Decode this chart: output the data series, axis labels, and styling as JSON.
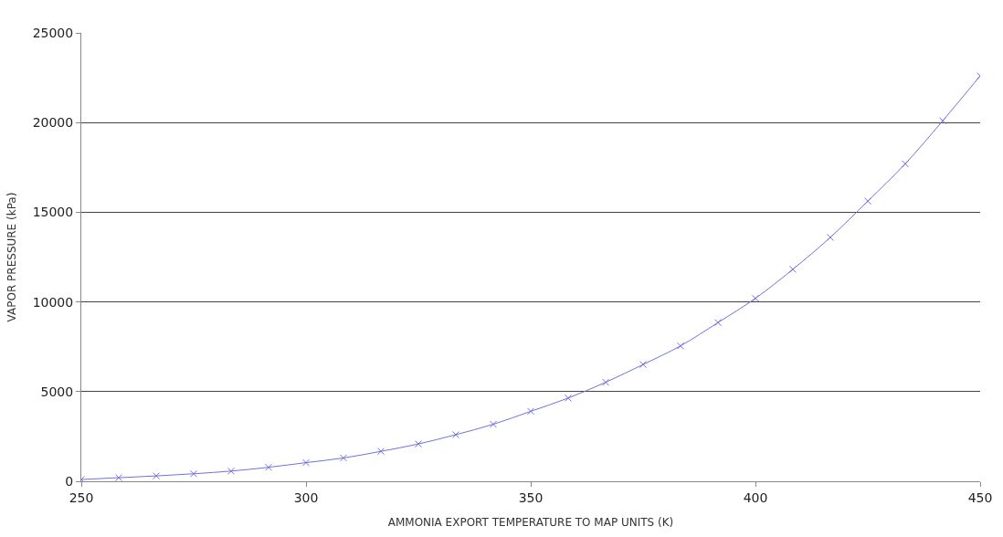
{
  "chart_data": {
    "type": "line",
    "xlabel": "AMMONIA EXPORT TEMPERATURE TO MAP UNITS (K)",
    "ylabel": "VAPOR PRESSURE (kPa)",
    "x": [
      250,
      258.33,
      266.67,
      275,
      283.33,
      291.67,
      300,
      308.33,
      316.67,
      325,
      333.33,
      341.67,
      350,
      358.33,
      366.67,
      375,
      383.33,
      391.67,
      400,
      408.33,
      416.67,
      425,
      433.33,
      441.67,
      450
    ],
    "series": [
      {
        "color": "#7070e0",
        "values": [
          100,
          200,
          300,
          420,
          570,
          780,
          1040,
          1300,
          1670,
          2080,
          2600,
          3180,
          3900,
          4640,
          5520,
          6510,
          7550,
          8850,
          10200,
          11820,
          13600,
          15620,
          17700,
          20100,
          22600
        ]
      }
    ],
    "xlim": [
      250,
      450
    ],
    "xticks": [
      250,
      300,
      350,
      400,
      450
    ],
    "ylim": [
      0,
      25000
    ],
    "yticks": [
      0,
      5000,
      10000,
      15000,
      20000,
      25000
    ],
    "grid": "y",
    "legend": false,
    "marker": "cross",
    "line_style": "solid"
  }
}
